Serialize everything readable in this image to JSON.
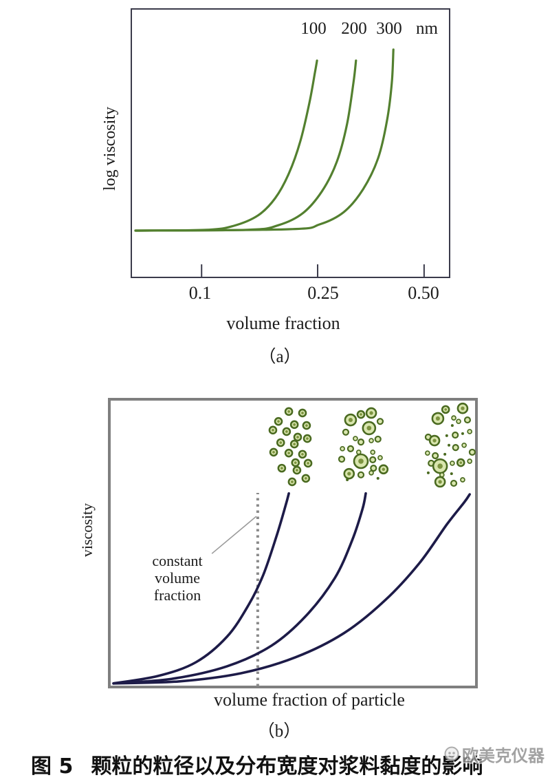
{
  "figure": {
    "caption": {
      "label": "图 5",
      "text": "颗粒的粒径以及分布宽度对浆料黏度的影响"
    },
    "watermark": {
      "text": "欧美克仪器",
      "logo": "omec-circle-logo"
    }
  },
  "colors": {
    "background": "#ffffff",
    "curve_green": "#53802f",
    "curve_navy": "#1d1b48",
    "box_a_border": "#3a3a4a",
    "box_b_border": "#7f7f7f",
    "dotted_line": "#8a8a8a",
    "pointer_line": "#9a9a9a",
    "particle_fill": "#d9e6ae",
    "particle_stroke": "#4a6a20",
    "particle_core": "#7d9440",
    "text": "#1b1b1b",
    "watermark_gray": "#8e8e8e"
  },
  "chart_data": [
    {
      "panel": "a",
      "panel_label": "（a）",
      "type": "line",
      "title": "",
      "xlabel": "volume fraction",
      "ylabel": "log viscosity",
      "legend": [
        "100",
        "200",
        "300",
        "nm"
      ],
      "x_ticks": [
        {
          "label": "0.1",
          "pos": 0.222
        },
        {
          "label": "0.25",
          "pos": 0.585
        },
        {
          "label": "0.50",
          "pos": 0.918
        }
      ],
      "axes_note": "schematic axes; series points are normalized 0-1 inside plot box (x from left, y from bottom)",
      "grid": false,
      "series": [
        {
          "name": "100 nm",
          "points": [
            [
              0.015,
              0.176
            ],
            [
              0.237,
              0.179
            ],
            [
              0.323,
              0.194
            ],
            [
              0.398,
              0.232
            ],
            [
              0.452,
              0.296
            ],
            [
              0.495,
              0.388
            ],
            [
              0.531,
              0.508
            ],
            [
              0.559,
              0.648
            ],
            [
              0.576,
              0.758
            ],
            [
              0.583,
              0.806
            ]
          ]
        },
        {
          "name": "200 nm",
          "points": [
            [
              0.015,
              0.176
            ],
            [
              0.366,
              0.179
            ],
            [
              0.462,
              0.196
            ],
            [
              0.538,
              0.24
            ],
            [
              0.598,
              0.321
            ],
            [
              0.645,
              0.431
            ],
            [
              0.677,
              0.571
            ],
            [
              0.697,
              0.724
            ],
            [
              0.705,
              0.806
            ]
          ]
        },
        {
          "name": "300 nm",
          "points": [
            [
              0.015,
              0.176
            ],
            [
              0.495,
              0.181
            ],
            [
              0.591,
              0.199
            ],
            [
              0.667,
              0.245
            ],
            [
              0.727,
              0.329
            ],
            [
              0.774,
              0.444
            ],
            [
              0.802,
              0.584
            ],
            [
              0.817,
              0.724
            ],
            [
              0.822,
              0.847
            ]
          ]
        }
      ]
    },
    {
      "panel": "b",
      "panel_label": "（b）",
      "type": "line",
      "title": "",
      "xlabel": "volume fraction of particle",
      "ylabel": "viscosity",
      "annotation": {
        "lines": [
          "constant",
          "volume",
          "fraction"
        ],
        "pointer": [
          0.281,
          0.464,
          0.401,
          0.592
        ]
      },
      "dotted_line": {
        "x": 0.405,
        "y_from": 0.007,
        "y_to": 0.673
      },
      "axes_note": "schematic axes, no ticks; series points normalized 0-1 inside plot box",
      "grid": false,
      "series": [
        {
          "name": "",
          "points": [
            [
              0.015,
              0.017
            ],
            [
              0.136,
              0.043
            ],
            [
              0.238,
              0.09
            ],
            [
              0.322,
              0.178
            ],
            [
              0.381,
              0.289
            ],
            [
              0.42,
              0.391
            ],
            [
              0.455,
              0.521
            ],
            [
              0.48,
              0.628
            ],
            [
              0.489,
              0.671
            ]
          ]
        },
        {
          "name": "",
          "points": [
            [
              0.015,
              0.017
            ],
            [
              0.173,
              0.033
            ],
            [
              0.322,
              0.076
            ],
            [
              0.442,
              0.147
            ],
            [
              0.535,
              0.249
            ],
            [
              0.613,
              0.379
            ],
            [
              0.66,
              0.509
            ],
            [
              0.688,
              0.616
            ],
            [
              0.697,
              0.671
            ]
          ]
        },
        {
          "name": "",
          "points": [
            [
              0.015,
              0.017
            ],
            [
              0.191,
              0.024
            ],
            [
              0.359,
              0.052
            ],
            [
              0.507,
              0.107
            ],
            [
              0.638,
              0.19
            ],
            [
              0.749,
              0.303
            ],
            [
              0.842,
              0.431
            ],
            [
              0.916,
              0.564
            ],
            [
              0.963,
              0.64
            ],
            [
              0.978,
              0.668
            ]
          ]
        }
      ],
      "clusters": [
        {
          "name": "uniform-small-particles",
          "dots": [
            [
              0.489,
              0.953,
              5
            ],
            [
              0.526,
              0.948,
              5
            ],
            [
              0.461,
              0.919,
              5
            ],
            [
              0.504,
              0.908,
              5
            ],
            [
              0.537,
              0.905,
              5
            ],
            [
              0.446,
              0.889,
              5
            ],
            [
              0.483,
              0.884,
              5
            ],
            [
              0.513,
              0.865,
              5
            ],
            [
              0.539,
              0.86,
              5
            ],
            [
              0.467,
              0.846,
              5
            ],
            [
              0.504,
              0.841,
              5
            ],
            [
              0.448,
              0.813,
              5
            ],
            [
              0.489,
              0.81,
              5
            ],
            [
              0.526,
              0.806,
              5
            ],
            [
              0.507,
              0.777,
              5
            ],
            [
              0.541,
              0.775,
              5
            ],
            [
              0.47,
              0.758,
              5
            ],
            [
              0.511,
              0.751,
              5
            ],
            [
              0.535,
              0.723,
              5
            ],
            [
              0.498,
              0.711,
              5
            ]
          ]
        },
        {
          "name": "mixed-size-particles",
          "dots": [
            [
              0.656,
              0.924,
              8
            ],
            [
              0.684,
              0.943,
              5
            ],
            [
              0.712,
              0.948,
              7
            ],
            [
              0.736,
              0.919,
              4
            ],
            [
              0.643,
              0.882,
              4
            ],
            [
              0.706,
              0.896,
              9
            ],
            [
              0.669,
              0.86,
              3
            ],
            [
              0.684,
              0.848,
              4
            ],
            [
              0.712,
              0.853,
              3
            ],
            [
              0.73,
              0.858,
              4
            ],
            [
              0.634,
              0.825,
              3
            ],
            [
              0.656,
              0.825,
              4
            ],
            [
              0.678,
              0.813,
              3
            ],
            [
              0.716,
              0.813,
              3
            ],
            [
              0.632,
              0.789,
              4
            ],
            [
              0.684,
              0.782,
              10
            ],
            [
              0.716,
              0.787,
              4
            ],
            [
              0.736,
              0.794,
              3
            ],
            [
              0.718,
              0.758,
              4
            ],
            [
              0.652,
              0.739,
              7
            ],
            [
              0.684,
              0.735,
              4
            ],
            [
              0.712,
              0.742,
              3
            ],
            [
              0.745,
              0.754,
              6
            ],
            [
              0.647,
              0.718,
              2
            ],
            [
              0.73,
              0.723,
              2
            ]
          ]
        },
        {
          "name": "broad-distribution-particles",
          "dots": [
            [
              0.913,
              0.96,
              5
            ],
            [
              0.959,
              0.964,
              7
            ],
            [
              0.892,
              0.929,
              8
            ],
            [
              0.935,
              0.931,
              3
            ],
            [
              0.948,
              0.919,
              3
            ],
            [
              0.972,
              0.924,
              4
            ],
            [
              0.931,
              0.905,
              2
            ],
            [
              0.866,
              0.865,
              4
            ],
            [
              0.883,
              0.853,
              7
            ],
            [
              0.916,
              0.87,
              2
            ],
            [
              0.939,
              0.872,
              4
            ],
            [
              0.959,
              0.877,
              2
            ],
            [
              0.978,
              0.884,
              3
            ],
            [
              0.922,
              0.837,
              2
            ],
            [
              0.94,
              0.829,
              4
            ],
            [
              0.963,
              0.837,
              3
            ],
            [
              0.864,
              0.81,
              3
            ],
            [
              0.885,
              0.801,
              4
            ],
            [
              0.911,
              0.806,
              2
            ],
            [
              0.985,
              0.813,
              4
            ],
            [
              0.874,
              0.775,
              4
            ],
            [
              0.898,
              0.765,
              10
            ],
            [
              0.931,
              0.775,
              3
            ],
            [
              0.954,
              0.777,
              5
            ],
            [
              0.978,
              0.782,
              3
            ],
            [
              0.866,
              0.742,
              2
            ],
            [
              0.903,
              0.735,
              3
            ],
            [
              0.929,
              0.739,
              2
            ],
            [
              0.898,
              0.711,
              7
            ],
            [
              0.935,
              0.706,
              4
            ],
            [
              0.959,
              0.718,
              3
            ]
          ]
        }
      ]
    }
  ]
}
